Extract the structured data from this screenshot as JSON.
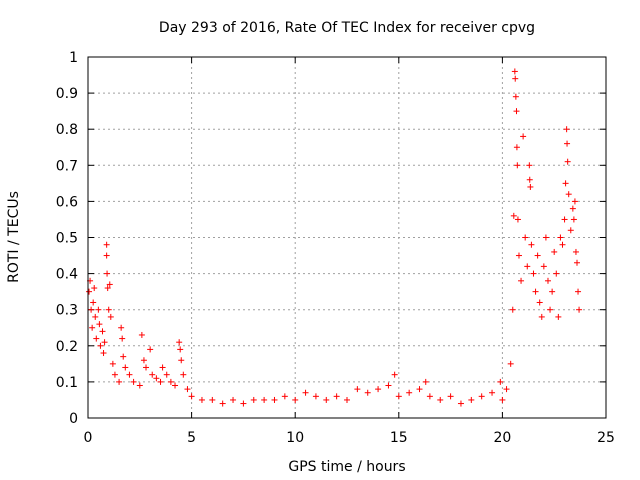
{
  "chart_data": {
    "type": "scatter",
    "title": "Day 293 of 2016, Rate Of TEC Index for receiver cpvg",
    "xlabel": "GPS time / hours",
    "ylabel": "ROTI / TECUs",
    "xlim": [
      0,
      25
    ],
    "ylim": [
      0,
      1
    ],
    "grid": true,
    "marker": "+",
    "color": "#ff0000",
    "xticks": [
      0,
      5,
      10,
      15,
      20,
      25
    ],
    "xtick_labels": [
      "0",
      "5",
      "10",
      "15",
      "20",
      "25"
    ],
    "yticks": [
      0,
      0.1,
      0.2,
      0.3,
      0.4,
      0.5,
      0.6,
      0.7,
      0.8,
      0.9,
      1
    ],
    "ytick_labels": [
      "0",
      "0.1",
      "0.2",
      "0.3",
      "0.4",
      "0.5",
      "0.6",
      "0.7",
      "0.8",
      "0.9",
      "1"
    ],
    "series": [
      {
        "name": "ROTI",
        "points": [
          [
            0.05,
            0.35
          ],
          [
            0.1,
            0.38
          ],
          [
            0.15,
            0.3
          ],
          [
            0.2,
            0.25
          ],
          [
            0.25,
            0.32
          ],
          [
            0.3,
            0.36
          ],
          [
            0.35,
            0.28
          ],
          [
            0.4,
            0.22
          ],
          [
            0.5,
            0.3
          ],
          [
            0.55,
            0.26
          ],
          [
            0.6,
            0.2
          ],
          [
            0.7,
            0.24
          ],
          [
            0.75,
            0.18
          ],
          [
            0.8,
            0.21
          ],
          [
            0.9,
            0.45
          ],
          [
            0.9,
            0.48
          ],
          [
            0.92,
            0.4
          ],
          [
            0.95,
            0.36
          ],
          [
            1.0,
            0.3
          ],
          [
            1.05,
            0.37
          ],
          [
            1.1,
            0.28
          ],
          [
            1.2,
            0.15
          ],
          [
            1.3,
            0.12
          ],
          [
            1.5,
            0.1
          ],
          [
            1.6,
            0.25
          ],
          [
            1.65,
            0.22
          ],
          [
            1.7,
            0.17
          ],
          [
            1.8,
            0.14
          ],
          [
            2.0,
            0.12
          ],
          [
            2.2,
            0.1
          ],
          [
            2.5,
            0.09
          ],
          [
            2.6,
            0.23
          ],
          [
            2.7,
            0.16
          ],
          [
            2.8,
            0.14
          ],
          [
            3.0,
            0.19
          ],
          [
            3.1,
            0.12
          ],
          [
            3.3,
            0.11
          ],
          [
            3.5,
            0.1
          ],
          [
            3.6,
            0.14
          ],
          [
            3.8,
            0.12
          ],
          [
            4.0,
            0.1
          ],
          [
            4.2,
            0.09
          ],
          [
            4.4,
            0.21
          ],
          [
            4.45,
            0.19
          ],
          [
            4.5,
            0.16
          ],
          [
            4.6,
            0.12
          ],
          [
            4.8,
            0.08
          ],
          [
            5.0,
            0.06
          ],
          [
            5.5,
            0.05
          ],
          [
            6.0,
            0.05
          ],
          [
            6.5,
            0.04
          ],
          [
            7.0,
            0.05
          ],
          [
            7.5,
            0.04
          ],
          [
            8.0,
            0.05
          ],
          [
            8.5,
            0.05
          ],
          [
            9.0,
            0.05
          ],
          [
            9.5,
            0.06
          ],
          [
            10.0,
            0.05
          ],
          [
            10.5,
            0.07
          ],
          [
            11.0,
            0.06
          ],
          [
            11.5,
            0.05
          ],
          [
            12.0,
            0.06
          ],
          [
            12.5,
            0.05
          ],
          [
            13.0,
            0.08
          ],
          [
            13.5,
            0.07
          ],
          [
            14.0,
            0.08
          ],
          [
            14.5,
            0.09
          ],
          [
            14.8,
            0.12
          ],
          [
            15.0,
            0.06
          ],
          [
            15.5,
            0.07
          ],
          [
            16.0,
            0.08
          ],
          [
            16.3,
            0.1
          ],
          [
            16.5,
            0.06
          ],
          [
            17.0,
            0.05
          ],
          [
            17.5,
            0.06
          ],
          [
            18.0,
            0.04
          ],
          [
            18.5,
            0.05
          ],
          [
            19.0,
            0.06
          ],
          [
            19.5,
            0.07
          ],
          [
            19.9,
            0.1
          ],
          [
            20.0,
            0.05
          ],
          [
            20.2,
            0.08
          ],
          [
            20.4,
            0.15
          ],
          [
            20.5,
            0.3
          ],
          [
            20.55,
            0.56
          ],
          [
            20.6,
            0.96
          ],
          [
            20.62,
            0.94
          ],
          [
            20.65,
            0.89
          ],
          [
            20.68,
            0.85
          ],
          [
            20.7,
            0.75
          ],
          [
            20.72,
            0.7
          ],
          [
            20.75,
            0.55
          ],
          [
            20.8,
            0.45
          ],
          [
            20.9,
            0.38
          ],
          [
            21.0,
            0.78
          ],
          [
            21.1,
            0.5
          ],
          [
            21.2,
            0.42
          ],
          [
            21.3,
            0.7
          ],
          [
            21.32,
            0.66
          ],
          [
            21.35,
            0.64
          ],
          [
            21.4,
            0.48
          ],
          [
            21.5,
            0.4
          ],
          [
            21.6,
            0.35
          ],
          [
            21.7,
            0.45
          ],
          [
            21.8,
            0.32
          ],
          [
            21.9,
            0.28
          ],
          [
            22.0,
            0.42
          ],
          [
            22.1,
            0.5
          ],
          [
            22.2,
            0.38
          ],
          [
            22.3,
            0.3
          ],
          [
            22.4,
            0.35
          ],
          [
            22.5,
            0.46
          ],
          [
            22.6,
            0.4
          ],
          [
            22.7,
            0.28
          ],
          [
            22.8,
            0.5
          ],
          [
            22.9,
            0.48
          ],
          [
            23.0,
            0.55
          ],
          [
            23.05,
            0.65
          ],
          [
            23.1,
            0.8
          ],
          [
            23.12,
            0.76
          ],
          [
            23.15,
            0.71
          ],
          [
            23.2,
            0.62
          ],
          [
            23.3,
            0.52
          ],
          [
            23.4,
            0.58
          ],
          [
            23.45,
            0.55
          ],
          [
            23.5,
            0.6
          ],
          [
            23.55,
            0.46
          ],
          [
            23.6,
            0.43
          ],
          [
            23.65,
            0.35
          ],
          [
            23.7,
            0.3
          ]
        ]
      }
    ]
  }
}
